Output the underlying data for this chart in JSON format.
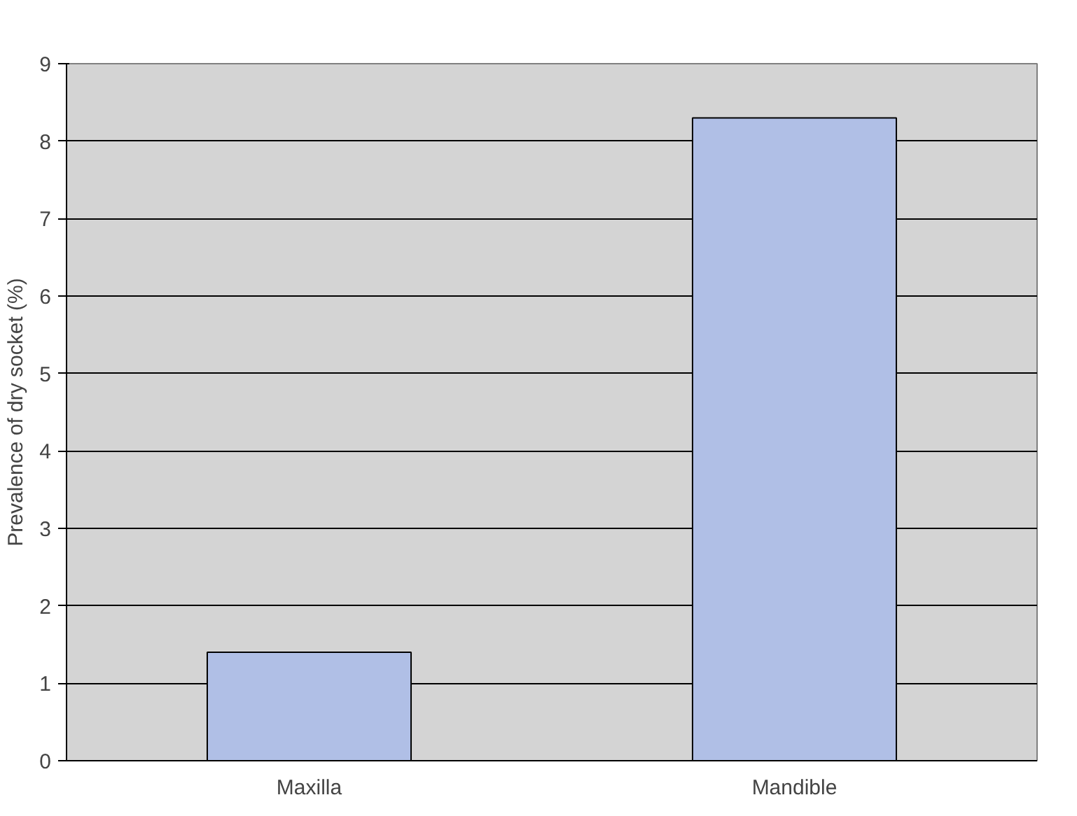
{
  "chart_data": {
    "type": "bar",
    "ylabel": "Prevalence of dry socket (%)",
    "categories": [
      "Maxilla",
      "Mandible"
    ],
    "values": [
      1.4,
      8.3
    ],
    "color": "#b0bfe6",
    "ylim": [
      0,
      9
    ],
    "yticks": [
      0,
      1,
      2,
      3,
      4,
      5,
      6,
      7,
      8,
      9
    ],
    "grid": "y"
  }
}
